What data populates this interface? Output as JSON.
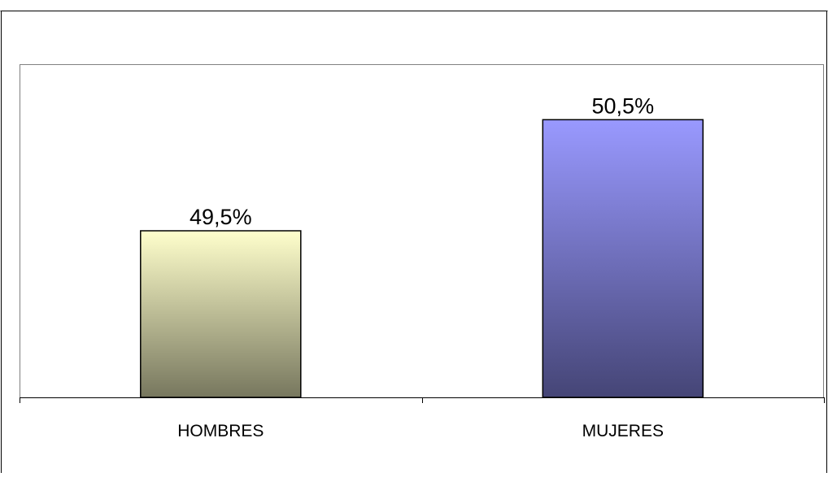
{
  "chart_data": {
    "type": "bar",
    "title": "",
    "xlabel": "",
    "ylabel": "",
    "categories": [
      "HOMBRES",
      "MUJERES"
    ],
    "values": [
      49.5,
      50.5
    ],
    "data_labels": [
      "49,5%",
      "50,5%"
    ],
    "ylim": [
      48,
      51
    ],
    "grid": false,
    "legend": "none",
    "colors": {
      "HOMBRES": {
        "top": "#FFFFCC",
        "bottom": "#77775E"
      },
      "MUJERES": {
        "top": "#9999FF",
        "bottom": "#454576"
      }
    }
  }
}
